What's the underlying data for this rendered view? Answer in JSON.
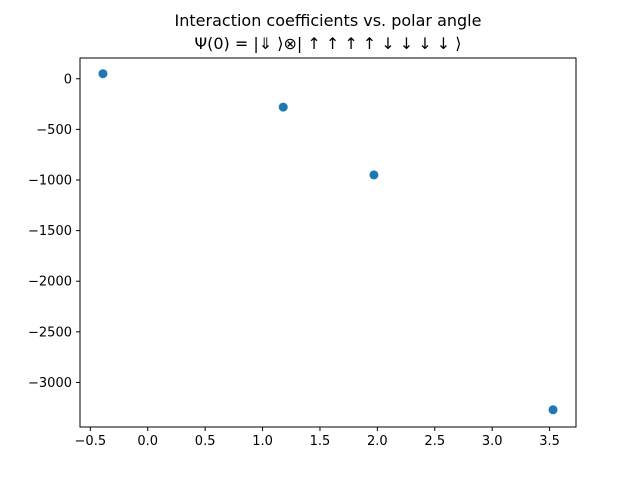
{
  "chart_data": {
    "type": "scatter",
    "title": "Interaction coefficients vs. polar angle",
    "subtitle": "Ψ(0) = |⇓ ⟩⊗| ↑ ↑ ↑ ↑ ↓ ↓ ↓ ↓ ⟩",
    "xlabel": "",
    "ylabel": "",
    "xlim": [
      -0.59,
      3.73
    ],
    "ylim": [
      -3440,
      205
    ],
    "x_ticks": [
      -0.5,
      0.0,
      0.5,
      1.0,
      1.5,
      2.0,
      2.5,
      3.0,
      3.5
    ],
    "x_tick_labels": [
      "−0.5",
      "0.0",
      "0.5",
      "1.0",
      "1.5",
      "2.0",
      "2.5",
      "3.0",
      "3.5"
    ],
    "y_ticks": [
      0,
      -500,
      -1000,
      -1500,
      -2000,
      -2500,
      -3000
    ],
    "y_tick_labels": [
      "0",
      "−500",
      "−1000",
      "−1500",
      "−2000",
      "−2500",
      "−3000"
    ],
    "grid": false,
    "series": [
      {
        "color": "#1f77b4",
        "points": [
          {
            "x": -0.39,
            "y": 50
          },
          {
            "x": 1.18,
            "y": -280
          },
          {
            "x": 1.97,
            "y": -950
          },
          {
            "x": 3.53,
            "y": -3270
          }
        ]
      }
    ]
  }
}
